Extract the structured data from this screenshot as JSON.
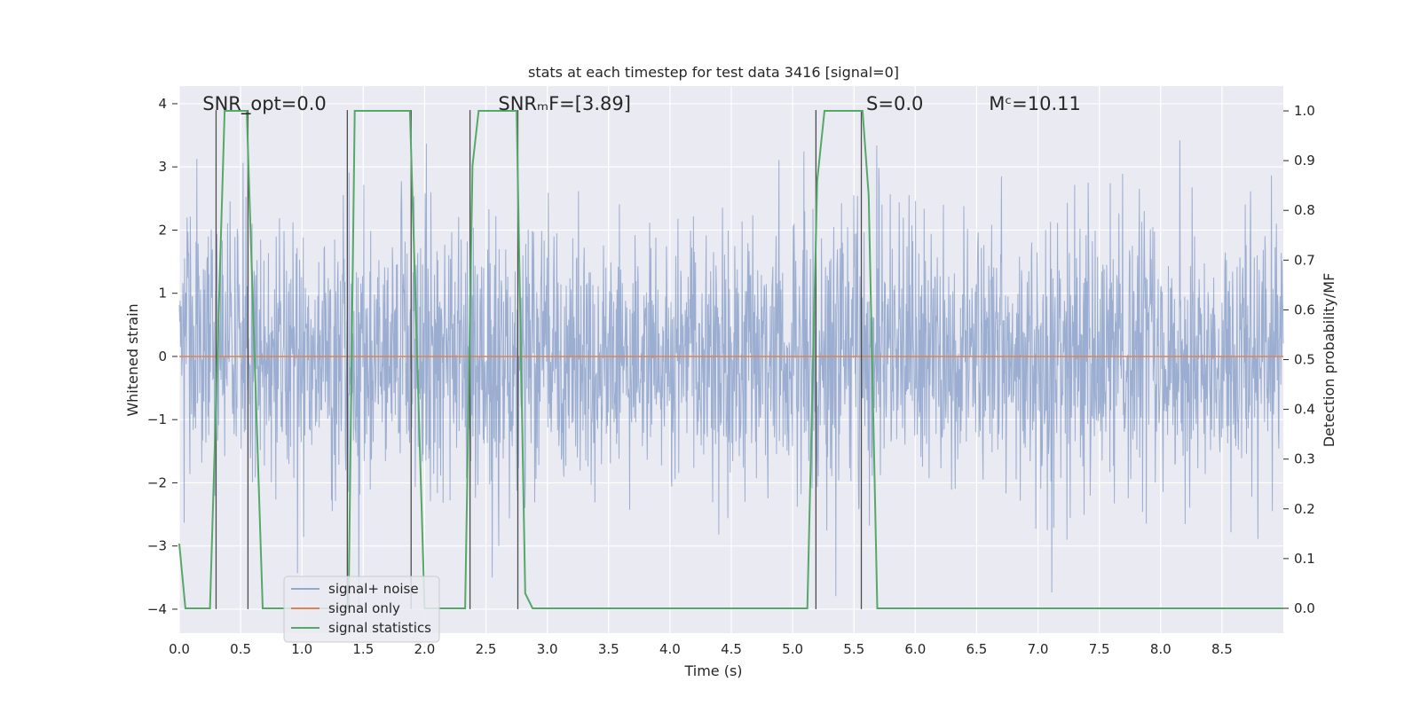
{
  "chart_data": {
    "type": "line",
    "title": "stats at each timestep for test data 3416 [signal=0]",
    "xlabel": "Time (s)",
    "ylabel_left": "Whitened strain",
    "ylabel_right": "Detection probability/MF",
    "xlim": [
      0,
      9.0
    ],
    "ylim_left": [
      -4.38,
      4.28
    ],
    "ylim_right": [
      -0.05,
      1.05
    ],
    "x_ticks": [
      0.0,
      0.5,
      1.0,
      1.5,
      2.0,
      2.5,
      3.0,
      3.5,
      4.0,
      4.5,
      5.0,
      5.5,
      6.0,
      6.5,
      7.0,
      7.5,
      8.0,
      8.5
    ],
    "x_tick_labels": [
      "0.0",
      "0.5",
      "1.0",
      "1.5",
      "2.0",
      "2.5",
      "3.0",
      "3.5",
      "4.0",
      "4.5",
      "5.0",
      "5.5",
      "6.0",
      "6.5",
      "7.0",
      "7.5",
      "8.0",
      "8.5"
    ],
    "y_ticks_left": [
      4,
      3,
      2,
      1,
      0,
      -1,
      -2,
      -3,
      -4
    ],
    "y_tick_labels_left": [
      "4",
      "3",
      "2",
      "1",
      "0",
      "−1",
      "−2",
      "−3",
      "−4"
    ],
    "y_ticks_right": [
      1.0,
      0.9,
      0.8,
      0.7,
      0.6,
      0.5,
      0.4,
      0.3,
      0.2,
      0.1,
      0.0
    ],
    "y_tick_labels_right": [
      "1.0",
      "0.9",
      "0.8",
      "0.7",
      "0.6",
      "0.5",
      "0.4",
      "0.3",
      "0.2",
      "0.1",
      "0.0"
    ],
    "grid": true,
    "legend_position": "lower-left",
    "annotations": [
      {
        "text": "SNR_opt=0.0",
        "x": 0.19,
        "y": 4.0
      },
      {
        "text": "SNRₘF=[3.89]",
        "x": 2.6,
        "y": 4.0
      },
      {
        "text": "S=0.0",
        "x": 5.6,
        "y": 4.0
      },
      {
        "text": "Mᶜ=10.11",
        "x": 6.6,
        "y": 4.0
      }
    ],
    "series": [
      {
        "name": "signal+ noise",
        "color": "#4c72b0",
        "axis": "left",
        "kind": "noise",
        "envelope_peak_max": 3.9,
        "envelope_typical": [
          -2.0,
          2.0
        ],
        "envelope_peak_min": -4.0
      },
      {
        "name": "signal only",
        "color": "#dd8452",
        "axis": "left",
        "x": [
          0.0,
          9.0
        ],
        "values": [
          0.0,
          0.0
        ]
      },
      {
        "name": "signal statistics",
        "color": "#55a868",
        "axis": "right",
        "x": [
          0.0,
          0.05,
          0.25,
          0.37,
          0.55,
          0.68,
          1.38,
          1.43,
          1.88,
          2.0,
          2.33,
          2.39,
          2.44,
          2.75,
          2.82,
          2.88,
          5.12,
          5.2,
          5.26,
          5.57,
          5.62,
          5.69,
          9.0
        ],
        "values": [
          0.13,
          0.0,
          0.0,
          1.0,
          1.0,
          0.0,
          0.0,
          1.0,
          1.0,
          0.0,
          0.0,
          0.89,
          1.0,
          1.0,
          0.03,
          0.0,
          0.0,
          0.86,
          1.0,
          1.0,
          0.83,
          0.0,
          0.0
        ]
      }
    ],
    "markers_vertical": {
      "color": "#4d4d4d",
      "x": [
        0.3,
        0.56,
        1.37,
        1.89,
        2.37,
        2.76,
        5.19,
        5.56
      ]
    }
  },
  "legend": {
    "items": [
      "signal+ noise",
      "signal only",
      "signal statistics"
    ]
  },
  "colors": {
    "axes_background": "#eaeaf2",
    "grid": "#ffffff",
    "noise": "#4c72b0",
    "signal_only": "#dd8452",
    "statistics": "#55a868",
    "markers": "#4d4d4d"
  }
}
